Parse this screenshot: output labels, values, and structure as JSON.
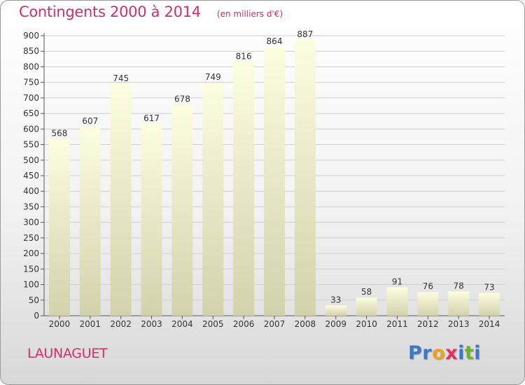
{
  "header": {
    "title": "Contingents 2000 à 2014",
    "subtitle": "(en milliers d'€)"
  },
  "commune": "LAUNAGUET",
  "logo": {
    "text": "Proxiti",
    "letters": [
      {
        "char": "P",
        "color": "#3a78c8"
      },
      {
        "char": "r",
        "color": "#3a78c8"
      },
      {
        "char": "o",
        "color": "#f0a020"
      },
      {
        "char": "x",
        "color": "#e03060"
      },
      {
        "char": "i",
        "color": "#3a78c8"
      },
      {
        "char": "t",
        "color": "#70b030"
      },
      {
        "char": "i",
        "color": "#3a78c8"
      }
    ]
  },
  "colors": {
    "accent": "#d0306a",
    "bar_top": "#fdfde0",
    "bar_bottom": "#d2d2ac",
    "grid": "#cfcfcf"
  },
  "chart_data": {
    "type": "bar",
    "categories": [
      "2000",
      "2001",
      "2002",
      "2003",
      "2004",
      "2005",
      "2006",
      "2007",
      "2008",
      "2009",
      "2010",
      "2011",
      "2012",
      "2013",
      "2014"
    ],
    "values": [
      568,
      607,
      745,
      617,
      678,
      749,
      816,
      864,
      887,
      33,
      58,
      91,
      76,
      78,
      73
    ],
    "ylim": [
      0,
      900
    ],
    "yticks": [
      0,
      50,
      100,
      150,
      200,
      250,
      300,
      350,
      400,
      450,
      500,
      550,
      600,
      650,
      700,
      750,
      800,
      850,
      900
    ],
    "grid": true,
    "data_labels": true
  }
}
